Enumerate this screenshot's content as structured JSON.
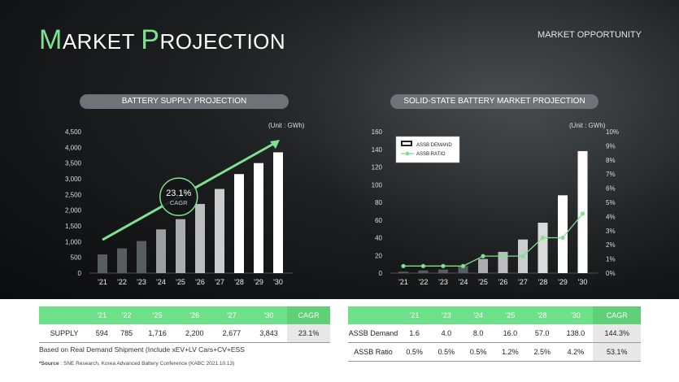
{
  "page_title": {
    "cap1": "M",
    "rest1": "ARKET ",
    "cap2": "P",
    "rest2": "ROJECTION"
  },
  "section_label": "MARKET OPPORTUNITY",
  "chart_data": [
    {
      "type": "bar",
      "title": "BATTERY SUPPLY PROJECTION",
      "unit": "(Unit : GWh)",
      "categories": [
        "'21",
        "'22",
        "'23",
        "'24",
        "'25",
        "'26",
        "'27",
        "'28",
        "'29",
        "'30"
      ],
      "values": [
        594,
        785,
        1020,
        1390,
        1716,
        2200,
        2677,
        3150,
        3500,
        3843
      ],
      "ylim": [
        0,
        4500
      ],
      "yticks": [
        "0",
        "500",
        "1,000",
        "1,500",
        "2,000",
        "2,500",
        "3,000",
        "3,500",
        "4,000",
        "4,500"
      ],
      "annotation": {
        "value": "23.1%",
        "label": "CAGR"
      },
      "colors": {
        "bar_dark": "#5a5d60",
        "bar_light": "#ffffff",
        "arrow": "#7fe08f"
      }
    },
    {
      "type": "bar",
      "title": "SOLID-STATE BATTERY MARKET PROJECTION",
      "unit": "(Unit : GWh)",
      "categories": [
        "'21",
        "'22",
        "'23",
        "'24",
        "'25",
        "'26",
        "'27",
        "'28",
        "'29",
        "'30"
      ],
      "series": [
        {
          "name": "ASSB DEMAND",
          "values": [
            1.6,
            3,
            4,
            8,
            16,
            24,
            38,
            57,
            88,
            138
          ]
        },
        {
          "name": "ASSB RATIO",
          "values": [
            0.5,
            0.5,
            0.5,
            0.5,
            1.2,
            1.2,
            1.2,
            2.5,
            2.5,
            4.2
          ]
        }
      ],
      "ylim": [
        0,
        160
      ],
      "yticks": [
        "0",
        "20",
        "40",
        "60",
        "80",
        "100",
        "120",
        "140",
        "160"
      ],
      "y2lim": [
        0,
        10
      ],
      "y2ticks": [
        "0%",
        "1%",
        "2%",
        "3%",
        "4%",
        "5%",
        "6%",
        "7%",
        "8%",
        "9%",
        "10%"
      ],
      "colors": {
        "bar_dark": "#5a5d60",
        "bar_light": "#ffffff",
        "line": "#7fe08f"
      }
    }
  ],
  "supply_table": {
    "headers": [
      "",
      "'21",
      "'22",
      "'25",
      "'26",
      "'27",
      "'30",
      "CAGR"
    ],
    "rows": [
      [
        "SUPPLY",
        "594",
        "785",
        "1,716",
        "2,200",
        "2,677",
        "3,843",
        "23.1%"
      ]
    ]
  },
  "supply_note": "Based on Real Demand Shipment (Include xEV+LV Cars+CV+ESS",
  "source": {
    "label": "*Source",
    "text": " : SNE Research, Korea Advanced Battery Conference (KABC 2021.10.13)"
  },
  "assb_table": {
    "headers": [
      "",
      "'21",
      "'23",
      "'24",
      "'25",
      "'28",
      "'30",
      "CAGR"
    ],
    "rows": [
      [
        "ASSB Demand",
        "1.6",
        "4.0",
        "8.0",
        "16.0",
        "57.0",
        "138.0",
        "144.3%"
      ],
      [
        "ASSB Ratio",
        "0.5%",
        "0.5%",
        "0.5%",
        "1.2%",
        "2.5%",
        "4.2%",
        "53.1%"
      ]
    ]
  }
}
